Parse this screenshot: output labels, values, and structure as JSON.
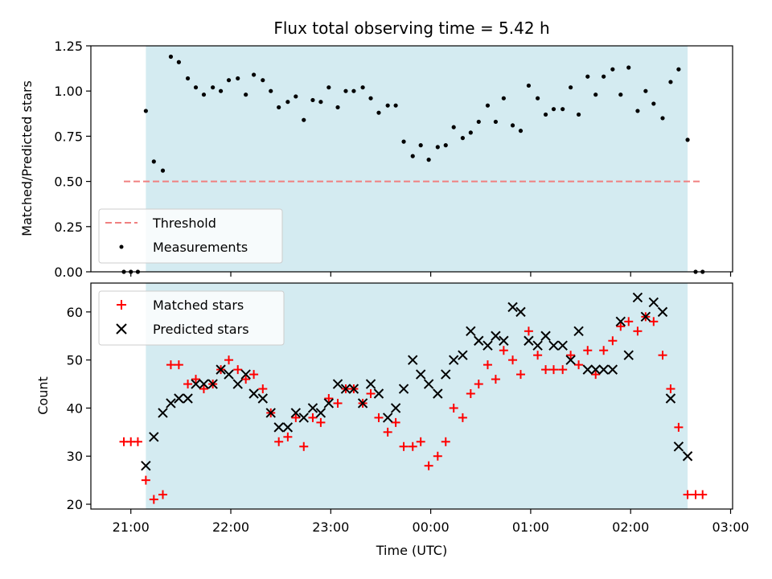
{
  "chart_data": [
    {
      "type": "scatter",
      "title": "Flux total observing time = 5.42 h",
      "xlabel": "",
      "ylabel": "Matched/Predicted stars",
      "ylim": [
        0,
        1.25
      ],
      "yticks": [
        "0.00",
        "0.25",
        "0.50",
        "0.75",
        "1.00",
        "1.25"
      ],
      "ytick_values": [
        0,
        0.25,
        0.5,
        0.75,
        1.0,
        1.25
      ],
      "legend": {
        "placement": "lower-left",
        "entries": [
          "Threshold",
          "Measurements"
        ]
      },
      "observing_window": {
        "start_h": 21.15,
        "end_h": 26.57,
        "color": "#d4ebf1"
      },
      "threshold": {
        "name": "Threshold",
        "value": 0.5,
        "x_range": [
          20.93,
          26.72
        ],
        "color": "#f08080"
      },
      "series": [
        {
          "name": "Measurements",
          "color": "#000000",
          "x": [
            20.93,
            21.0,
            21.07,
            21.15,
            21.23,
            21.32,
            21.4,
            21.48,
            21.57,
            21.65,
            21.73,
            21.82,
            21.9,
            21.98,
            22.07,
            22.15,
            22.23,
            22.32,
            22.4,
            22.48,
            22.57,
            22.65,
            22.73,
            22.82,
            22.9,
            22.98,
            23.07,
            23.15,
            23.23,
            23.32,
            23.4,
            23.48,
            23.57,
            23.65,
            23.73,
            23.82,
            23.9,
            23.98,
            24.07,
            24.15,
            24.23,
            24.32,
            24.4,
            24.48,
            24.57,
            24.65,
            24.73,
            24.82,
            24.9,
            24.98,
            25.07,
            25.15,
            25.23,
            25.32,
            25.4,
            25.48,
            25.57,
            25.65,
            25.73,
            25.82,
            25.9,
            25.98,
            26.07,
            26.15,
            26.23,
            26.32,
            26.4,
            26.48,
            26.57,
            26.65,
            26.72
          ],
          "y": [
            0.0,
            0.0,
            0.0,
            0.89,
            0.61,
            0.56,
            1.19,
            1.16,
            1.07,
            1.02,
            0.98,
            1.02,
            1.0,
            1.06,
            1.07,
            0.98,
            1.09,
            1.06,
            1.0,
            0.91,
            0.94,
            0.97,
            0.84,
            0.95,
            0.94,
            1.02,
            0.91,
            1.0,
            1.0,
            1.02,
            0.96,
            0.88,
            0.92,
            0.92,
            0.72,
            0.64,
            0.7,
            0.62,
            0.69,
            0.7,
            0.8,
            0.74,
            0.77,
            0.83,
            0.92,
            0.83,
            0.96,
            0.81,
            0.78,
            1.03,
            0.96,
            0.87,
            0.9,
            0.9,
            1.02,
            0.87,
            1.08,
            0.98,
            1.08,
            1.12,
            0.98,
            1.13,
            0.89,
            1.0,
            0.93,
            0.85,
            1.05,
            1.12,
            0.73,
            0.0,
            0.0
          ]
        }
      ]
    },
    {
      "type": "scatter",
      "title": "",
      "xlabel": "Time (UTC)",
      "ylabel": "Count",
      "ylim": [
        19,
        66
      ],
      "yticks": [
        "20",
        "30",
        "40",
        "50",
        "60"
      ],
      "ytick_values": [
        20,
        30,
        40,
        50,
        60
      ],
      "xticks": [
        "21:00",
        "22:00",
        "23:00",
        "00:00",
        "01:00",
        "02:00",
        "03:00"
      ],
      "xtick_values": [
        21,
        22,
        23,
        24,
        25,
        26,
        27
      ],
      "xlim": [
        20.6,
        27.02
      ],
      "legend": {
        "placement": "upper-left",
        "entries": [
          "Matched stars",
          "Predicted stars"
        ]
      },
      "series": [
        {
          "name": "Matched stars",
          "marker": "plus",
          "color": "#ff0000",
          "x": [
            20.93,
            21.0,
            21.07,
            21.15,
            21.23,
            21.32,
            21.4,
            21.48,
            21.57,
            21.65,
            21.73,
            21.82,
            21.9,
            21.98,
            22.07,
            22.15,
            22.23,
            22.32,
            22.4,
            22.48,
            22.57,
            22.65,
            22.73,
            22.82,
            22.9,
            22.98,
            23.07,
            23.15,
            23.23,
            23.32,
            23.4,
            23.48,
            23.57,
            23.65,
            23.73,
            23.82,
            23.9,
            23.98,
            24.07,
            24.15,
            24.23,
            24.32,
            24.4,
            24.48,
            24.57,
            24.65,
            24.73,
            24.82,
            24.9,
            24.98,
            25.07,
            25.15,
            25.23,
            25.32,
            25.4,
            25.48,
            25.57,
            25.65,
            25.73,
            25.82,
            25.9,
            25.98,
            26.07,
            26.15,
            26.23,
            26.32,
            26.4,
            26.48,
            26.57,
            26.65,
            26.72
          ],
          "y": [
            33,
            33,
            33,
            25,
            21,
            22,
            49,
            49,
            45,
            46,
            44,
            45,
            48,
            50,
            48,
            46,
            47,
            44,
            39,
            33,
            34,
            38,
            32,
            38,
            37,
            42,
            41,
            44,
            44,
            41,
            43,
            38,
            35,
            37,
            32,
            32,
            33,
            28,
            30,
            33,
            40,
            38,
            43,
            45,
            49,
            46,
            52,
            50,
            47,
            56,
            51,
            48,
            48,
            48,
            51,
            49,
            52,
            47,
            52,
            54,
            57,
            58,
            56,
            59,
            58,
            51,
            44,
            36,
            22,
            22,
            22
          ]
        },
        {
          "name": "Predicted stars",
          "marker": "x",
          "color": "#000000",
          "x": [
            21.15,
            21.23,
            21.32,
            21.4,
            21.48,
            21.57,
            21.65,
            21.73,
            21.82,
            21.9,
            21.98,
            22.07,
            22.15,
            22.23,
            22.32,
            22.4,
            22.48,
            22.57,
            22.65,
            22.73,
            22.82,
            22.9,
            22.98,
            23.07,
            23.15,
            23.23,
            23.32,
            23.4,
            23.48,
            23.57,
            23.65,
            23.73,
            23.82,
            23.9,
            23.98,
            24.07,
            24.15,
            24.23,
            24.32,
            24.4,
            24.48,
            24.57,
            24.65,
            24.73,
            24.82,
            24.9,
            24.98,
            25.07,
            25.15,
            25.23,
            25.32,
            25.4,
            25.48,
            25.57,
            25.65,
            25.73,
            25.82,
            25.9,
            25.98,
            26.07,
            26.15,
            26.23,
            26.32,
            26.4,
            26.48,
            26.57
          ],
          "y": [
            28,
            34,
            39,
            41,
            42,
            42,
            45,
            45,
            45,
            48,
            47,
            45,
            47,
            43,
            42,
            39,
            36,
            36,
            39,
            38,
            40,
            39,
            41,
            45,
            44,
            44,
            41,
            45,
            43,
            38,
            40,
            44,
            50,
            47,
            45,
            43,
            47,
            50,
            51,
            56,
            54,
            53,
            55,
            54,
            61,
            60,
            54,
            53,
            55,
            53,
            53,
            50,
            56,
            48,
            48,
            48,
            48,
            58,
            51,
            63,
            59,
            62,
            60,
            42,
            32,
            30
          ]
        }
      ]
    }
  ]
}
